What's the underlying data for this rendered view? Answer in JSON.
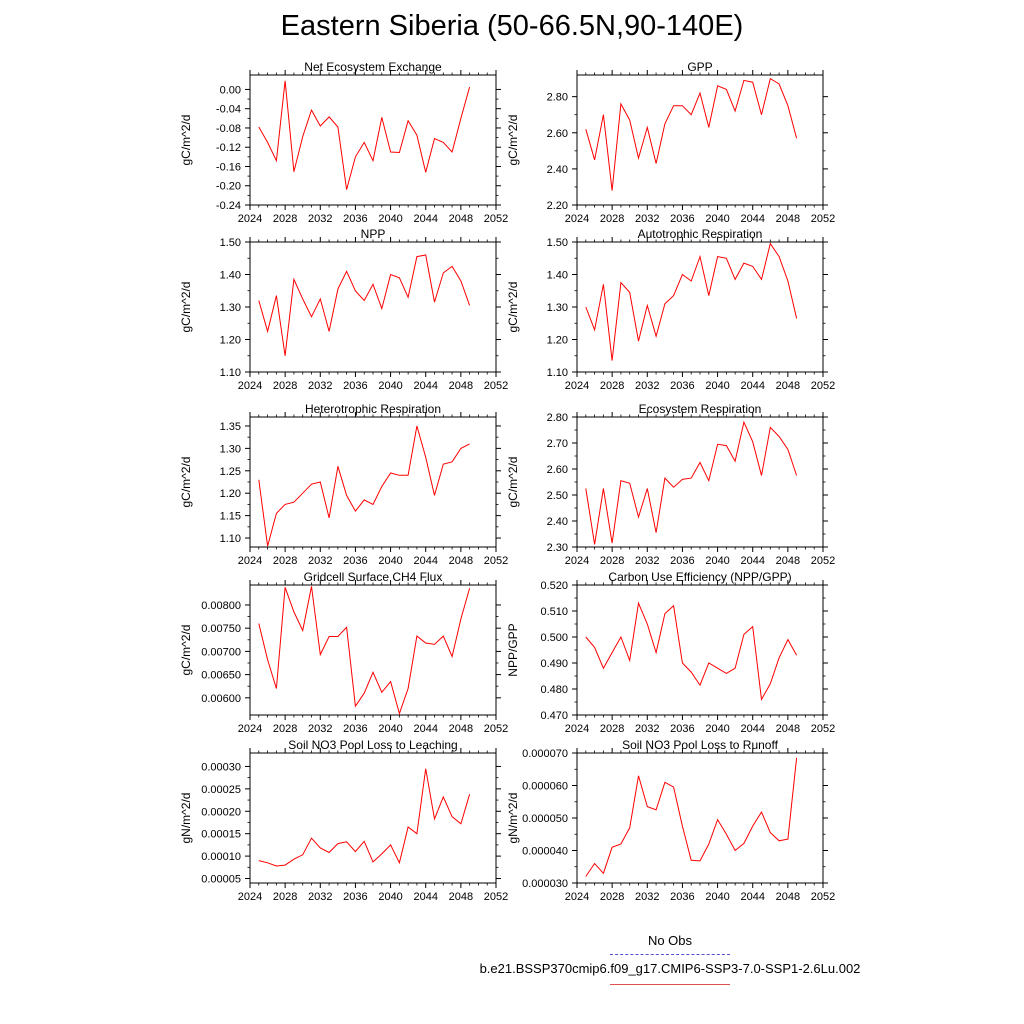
{
  "title": "Eastern Siberia (50-66.5N,90-140E)",
  "legend": {
    "obs_label": "No Obs",
    "run_label": "b.e21.BSSP370cmip6.f09_g17.CMIP6-SSP3-7.0-SSP1-2.6Lu.002",
    "obs_color": "#5050d0",
    "run_color": "#e05050"
  },
  "line_color": "#ff0000",
  "chart_data": [
    {
      "type": "line",
      "title": "Net Ecosystem Exchange",
      "ylabel": "gC/m^2/d",
      "xlim": [
        2024,
        2052
      ],
      "ylim": [
        -0.24,
        0.03
      ],
      "xticks": [
        2024,
        2028,
        2032,
        2036,
        2040,
        2044,
        2048,
        2052
      ],
      "yticks": [
        -0.24,
        -0.2,
        -0.16,
        -0.12,
        -0.08,
        -0.04,
        0.0
      ],
      "ytick_labels": [
        "-0.24",
        "-0.20",
        "-0.16",
        "-0.12",
        "-0.08",
        "-0.04",
        "0.00"
      ],
      "x": [
        2025,
        2026,
        2027,
        2028,
        2029,
        2030,
        2031,
        2032,
        2033,
        2034,
        2035,
        2036,
        2037,
        2038,
        2039,
        2040,
        2041,
        2042,
        2043,
        2044,
        2045,
        2046,
        2047,
        2048,
        2049
      ],
      "y": [
        -0.078,
        -0.11,
        -0.148,
        0.018,
        -0.171,
        -0.098,
        -0.043,
        -0.076,
        -0.057,
        -0.078,
        -0.208,
        -0.14,
        -0.11,
        -0.148,
        -0.058,
        -0.13,
        -0.131,
        -0.065,
        -0.095,
        -0.172,
        -0.102,
        -0.11,
        -0.13,
        -0.06,
        0.005
      ]
    },
    {
      "type": "line",
      "title": "GPP",
      "ylabel": "gC/m^2/d",
      "xlim": [
        2024,
        2052
      ],
      "ylim": [
        2.2,
        2.92
      ],
      "xticks": [
        2024,
        2028,
        2032,
        2036,
        2040,
        2044,
        2048,
        2052
      ],
      "yticks": [
        2.2,
        2.4,
        2.6,
        2.8
      ],
      "ytick_labels": [
        "2.20",
        "2.40",
        "2.60",
        "2.80"
      ],
      "x": [
        2025,
        2026,
        2027,
        2028,
        2029,
        2030,
        2031,
        2032,
        2033,
        2034,
        2035,
        2036,
        2037,
        2038,
        2039,
        2040,
        2041,
        2042,
        2043,
        2044,
        2045,
        2046,
        2047,
        2048,
        2049
      ],
      "y": [
        2.62,
        2.45,
        2.7,
        2.28,
        2.76,
        2.67,
        2.46,
        2.63,
        2.43,
        2.65,
        2.75,
        2.75,
        2.7,
        2.82,
        2.63,
        2.86,
        2.84,
        2.72,
        2.89,
        2.88,
        2.7,
        2.9,
        2.87,
        2.75,
        2.57
      ]
    },
    {
      "type": "line",
      "title": "NPP",
      "ylabel": "gC/m^2/d",
      "xlim": [
        2024,
        2052
      ],
      "ylim": [
        1.1,
        1.5
      ],
      "xticks": [
        2024,
        2028,
        2032,
        2036,
        2040,
        2044,
        2048,
        2052
      ],
      "yticks": [
        1.1,
        1.2,
        1.3,
        1.4,
        1.5
      ],
      "ytick_labels": [
        "1.10",
        "1.20",
        "1.30",
        "1.40",
        "1.50"
      ],
      "x": [
        2025,
        2026,
        2027,
        2028,
        2029,
        2030,
        2031,
        2032,
        2033,
        2034,
        2035,
        2036,
        2037,
        2038,
        2039,
        2040,
        2041,
        2042,
        2043,
        2044,
        2045,
        2046,
        2047,
        2048,
        2049
      ],
      "y": [
        1.32,
        1.225,
        1.335,
        1.15,
        1.385,
        1.325,
        1.27,
        1.325,
        1.225,
        1.355,
        1.41,
        1.35,
        1.32,
        1.37,
        1.295,
        1.4,
        1.39,
        1.33,
        1.455,
        1.46,
        1.315,
        1.405,
        1.425,
        1.38,
        1.305
      ]
    },
    {
      "type": "line",
      "title": "Autotrophic Respiration",
      "ylabel": "gC/m^2/d",
      "xlim": [
        2024,
        2052
      ],
      "ylim": [
        1.1,
        1.5
      ],
      "xticks": [
        2024,
        2028,
        2032,
        2036,
        2040,
        2044,
        2048,
        2052
      ],
      "yticks": [
        1.1,
        1.2,
        1.3,
        1.4,
        1.5
      ],
      "ytick_labels": [
        "1.10",
        "1.20",
        "1.30",
        "1.40",
        "1.50"
      ],
      "x": [
        2025,
        2026,
        2027,
        2028,
        2029,
        2030,
        2031,
        2032,
        2033,
        2034,
        2035,
        2036,
        2037,
        2038,
        2039,
        2040,
        2041,
        2042,
        2043,
        2044,
        2045,
        2046,
        2047,
        2048,
        2049
      ],
      "y": [
        1.3,
        1.23,
        1.37,
        1.135,
        1.375,
        1.345,
        1.195,
        1.305,
        1.21,
        1.31,
        1.335,
        1.4,
        1.38,
        1.455,
        1.335,
        1.455,
        1.45,
        1.385,
        1.435,
        1.425,
        1.385,
        1.495,
        1.455,
        1.38,
        1.265
      ]
    },
    {
      "type": "line",
      "title": "Heterotrophic Respiration",
      "ylabel": "gC/m^2/d",
      "xlim": [
        2024,
        2052
      ],
      "ylim": [
        1.08,
        1.37
      ],
      "xticks": [
        2024,
        2028,
        2032,
        2036,
        2040,
        2044,
        2048,
        2052
      ],
      "yticks": [
        1.1,
        1.15,
        1.2,
        1.25,
        1.3,
        1.35
      ],
      "ytick_labels": [
        "1.10",
        "1.15",
        "1.20",
        "1.25",
        "1.30",
        "1.35"
      ],
      "x": [
        2025,
        2026,
        2027,
        2028,
        2029,
        2030,
        2031,
        2032,
        2033,
        2034,
        2035,
        2036,
        2037,
        2038,
        2039,
        2040,
        2041,
        2042,
        2043,
        2044,
        2045,
        2046,
        2047,
        2048,
        2049
      ],
      "y": [
        1.23,
        1.082,
        1.155,
        1.175,
        1.18,
        1.2,
        1.22,
        1.225,
        1.145,
        1.26,
        1.195,
        1.16,
        1.185,
        1.175,
        1.215,
        1.245,
        1.24,
        1.24,
        1.35,
        1.28,
        1.195,
        1.265,
        1.27,
        1.3,
        1.31
      ]
    },
    {
      "type": "line",
      "title": "Ecosystem Respiration",
      "ylabel": "gC/m^2/d",
      "xlim": [
        2024,
        2052
      ],
      "ylim": [
        2.3,
        2.8
      ],
      "xticks": [
        2024,
        2028,
        2032,
        2036,
        2040,
        2044,
        2048,
        2052
      ],
      "yticks": [
        2.3,
        2.4,
        2.5,
        2.6,
        2.7,
        2.8
      ],
      "ytick_labels": [
        "2.30",
        "2.40",
        "2.50",
        "2.60",
        "2.70",
        "2.80"
      ],
      "x": [
        2025,
        2026,
        2027,
        2028,
        2029,
        2030,
        2031,
        2032,
        2033,
        2034,
        2035,
        2036,
        2037,
        2038,
        2039,
        2040,
        2041,
        2042,
        2043,
        2044,
        2045,
        2046,
        2047,
        2048,
        2049
      ],
      "y": [
        2.525,
        2.31,
        2.525,
        2.315,
        2.555,
        2.545,
        2.415,
        2.525,
        2.355,
        2.565,
        2.53,
        2.56,
        2.565,
        2.625,
        2.555,
        2.695,
        2.69,
        2.63,
        2.78,
        2.705,
        2.575,
        2.76,
        2.725,
        2.675,
        2.575
      ]
    },
    {
      "type": "line",
      "title": "Gridcell Surface CH4 Flux",
      "ylabel": "gC/m^2/d",
      "xlim": [
        2024,
        2052
      ],
      "ylim": [
        0.00563,
        0.00843
      ],
      "xticks": [
        2024,
        2028,
        2032,
        2036,
        2040,
        2044,
        2048,
        2052
      ],
      "yticks": [
        0.006,
        0.0065,
        0.007,
        0.0075,
        0.008
      ],
      "ytick_labels": [
        "0.00600",
        "0.00650",
        "0.00700",
        "0.00750",
        "0.00800"
      ],
      "x": [
        2025,
        2026,
        2027,
        2028,
        2029,
        2030,
        2031,
        2032,
        2033,
        2034,
        2035,
        2036,
        2037,
        2038,
        2039,
        2040,
        2041,
        2042,
        2043,
        2044,
        2045,
        2046,
        2047,
        2048,
        2049
      ],
      "y": [
        0.0076,
        0.00682,
        0.0062,
        0.00838,
        0.00785,
        0.00745,
        0.0084,
        0.00693,
        0.00732,
        0.00732,
        0.00752,
        0.00582,
        0.0061,
        0.00655,
        0.00612,
        0.00635,
        0.00566,
        0.0062,
        0.00733,
        0.00718,
        0.00715,
        0.00733,
        0.00689,
        0.0077,
        0.00836
      ]
    },
    {
      "type": "line",
      "title": "Carbon Use Efficiency (NPP/GPP)",
      "ylabel": "NPP/GPP",
      "xlim": [
        2024,
        2052
      ],
      "ylim": [
        0.47,
        0.52
      ],
      "xticks": [
        2024,
        2028,
        2032,
        2036,
        2040,
        2044,
        2048,
        2052
      ],
      "yticks": [
        0.47,
        0.48,
        0.49,
        0.5,
        0.51,
        0.52
      ],
      "ytick_labels": [
        "0.470",
        "0.480",
        "0.490",
        "0.500",
        "0.510",
        "0.520"
      ],
      "x": [
        2025,
        2026,
        2027,
        2028,
        2029,
        2030,
        2031,
        2032,
        2033,
        2034,
        2035,
        2036,
        2037,
        2038,
        2039,
        2040,
        2041,
        2042,
        2043,
        2044,
        2045,
        2046,
        2047,
        2048,
        2049
      ],
      "y": [
        0.5,
        0.496,
        0.488,
        0.494,
        0.5,
        0.491,
        0.513,
        0.505,
        0.494,
        0.509,
        0.512,
        0.49,
        0.4865,
        0.4815,
        0.49,
        0.488,
        0.486,
        0.488,
        0.501,
        0.504,
        0.476,
        0.482,
        0.492,
        0.499,
        0.493
      ]
    },
    {
      "type": "line",
      "title": "Soil NO3 Pool Loss to Leaching",
      "ylabel": "gN/m^2/d",
      "xlim": [
        2024,
        2052
      ],
      "ylim": [
        4e-05,
        0.00033
      ],
      "xticks": [
        2024,
        2028,
        2032,
        2036,
        2040,
        2044,
        2048,
        2052
      ],
      "yticks": [
        5e-05,
        0.0001,
        0.00015,
        0.0002,
        0.00025,
        0.0003
      ],
      "ytick_labels": [
        "0.00005",
        "0.00010",
        "0.00015",
        "0.00020",
        "0.00025",
        "0.00030"
      ],
      "x": [
        2025,
        2026,
        2027,
        2028,
        2029,
        2030,
        2031,
        2032,
        2033,
        2034,
        2035,
        2036,
        2037,
        2038,
        2039,
        2040,
        2041,
        2042,
        2043,
        2044,
        2045,
        2046,
        2047,
        2048,
        2049
      ],
      "y": [
        9e-05,
        8.5e-05,
        7.8e-05,
        8e-05,
        9.3e-05,
        0.000103,
        0.00014,
        0.000118,
        0.000108,
        0.000128,
        0.000132,
        0.00011,
        0.000133,
        8.7e-05,
        0.000105,
        0.000125,
        8.5e-05,
        0.000165,
        0.00015,
        0.000295,
        0.000183,
        0.000232,
        0.000188,
        0.000172,
        0.000238
      ]
    },
    {
      "type": "line",
      "title": "Soil NO3 Pool Loss to Runoff",
      "ylabel": "gN/m^2/d",
      "xlim": [
        2024,
        2052
      ],
      "ylim": [
        3e-05,
        7e-05
      ],
      "xticks": [
        2024,
        2028,
        2032,
        2036,
        2040,
        2044,
        2048,
        2052
      ],
      "yticks": [
        3e-05,
        4e-05,
        5e-05,
        6e-05,
        7e-05
      ],
      "ytick_labels": [
        "0.000030",
        "0.000040",
        "0.000050",
        "0.000060",
        "0.000070"
      ],
      "x": [
        2025,
        2026,
        2027,
        2028,
        2029,
        2030,
        2031,
        2032,
        2033,
        2034,
        2035,
        2036,
        2037,
        2038,
        2039,
        2040,
        2041,
        2042,
        2043,
        2044,
        2045,
        2046,
        2047,
        2048,
        2049
      ],
      "y": [
        3.2e-05,
        3.6e-05,
        3.3e-05,
        4.1e-05,
        4.2e-05,
        4.7e-05,
        6.3e-05,
        5.35e-05,
        5.25e-05,
        6.1e-05,
        5.95e-05,
        4.75e-05,
        3.7e-05,
        3.68e-05,
        4.2e-05,
        4.95e-05,
        4.5e-05,
        4e-05,
        4.22e-05,
        4.75e-05,
        5.18e-05,
        4.55e-05,
        4.3e-05,
        4.35e-05,
        6.85e-05
      ]
    }
  ]
}
